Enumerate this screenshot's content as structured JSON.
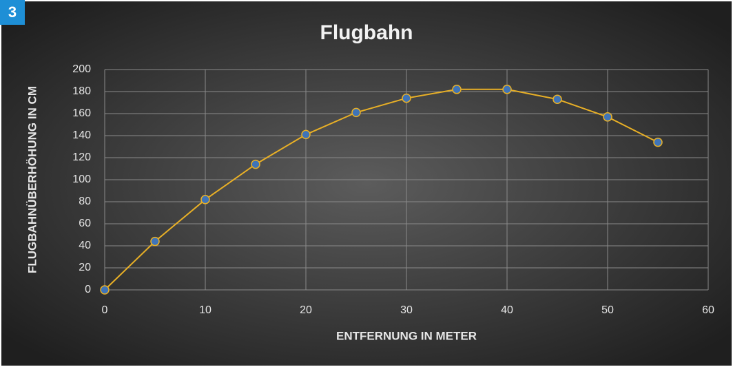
{
  "badge": "3",
  "chart_data": {
    "type": "line",
    "title": "Flugbahn",
    "x_label": "ENTFERNUNG IN METER",
    "y_label": "FLUGBAHNÜBERHÖHUNG IN CM",
    "x": [
      0,
      5,
      10,
      15,
      20,
      25,
      30,
      35,
      40,
      45,
      50,
      55
    ],
    "values": [
      0,
      44,
      82,
      114,
      141,
      161,
      174,
      182,
      182,
      173,
      157,
      134
    ],
    "color": "#e9b026",
    "marker_color": "#3f74b8",
    "xlim": [
      0,
      60
    ],
    "xticks": [
      0,
      10,
      20,
      30,
      40,
      50,
      60
    ],
    "ylim": [
      0,
      200
    ],
    "yticks": [
      0,
      20,
      40,
      60,
      80,
      100,
      120,
      140,
      160,
      180,
      200
    ],
    "grid": true
  }
}
